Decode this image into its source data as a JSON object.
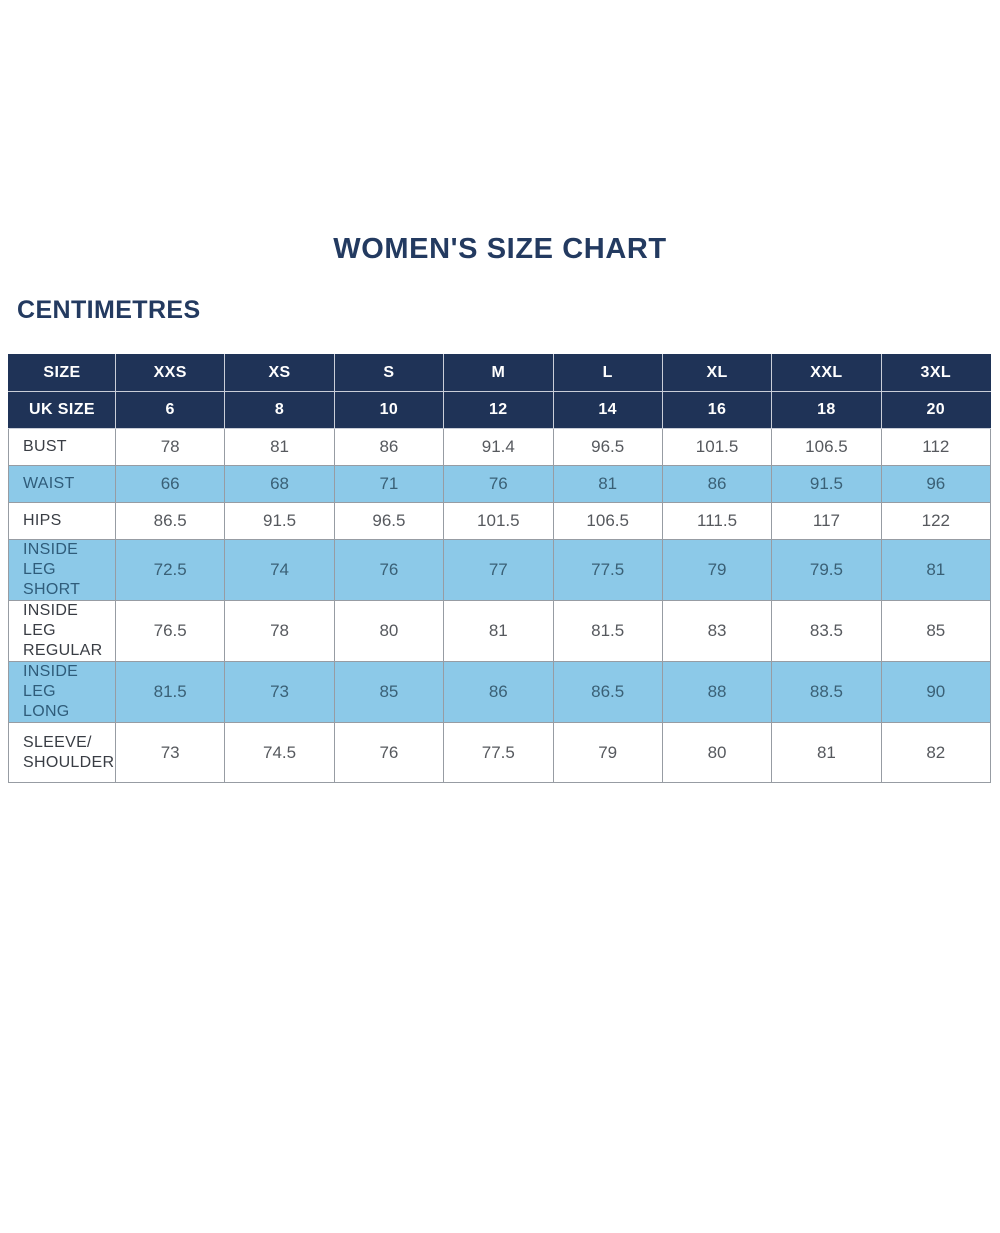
{
  "page_title": "WOMEN'S SIZE CHART",
  "unit_label": "CENTIMETRES",
  "colors": {
    "navy_header_bg": "#1f3357",
    "highlight_row_bg": "#8cc9e8",
    "title_text": "#233a60",
    "header_text": "#ffffff",
    "white_row_label_text": "#393d44",
    "white_row_value_text": "#56595e",
    "blue_row_text": "#2f5c7a",
    "grid_border": "#979ca3"
  },
  "chart_data": {
    "type": "table",
    "title": "WOMEN'S SIZE CHART",
    "subtitle": "CENTIMETRES",
    "columns": [
      "SIZE",
      "XXS",
      "XS",
      "S",
      "M",
      "L",
      "XL",
      "XXL",
      "3XL"
    ],
    "uk_size_row": {
      "label": "UK SIZE",
      "values": [
        "6",
        "8",
        "10",
        "12",
        "14",
        "16",
        "18",
        "20"
      ]
    },
    "rows": [
      {
        "label": "BUST",
        "values": [
          "78",
          "81",
          "86",
          "91.4",
          "96.5",
          "101.5",
          "106.5",
          "112"
        ]
      },
      {
        "label": "WAIST",
        "values": [
          "66",
          "68",
          "71",
          "76",
          "81",
          "86",
          "91.5",
          "96"
        ]
      },
      {
        "label": "HIPS",
        "values": [
          "86.5",
          "91.5",
          "96.5",
          "101.5",
          "106.5",
          "111.5",
          "117",
          "122"
        ]
      },
      {
        "label": "INSIDE LEG\nSHORT",
        "values": [
          "72.5",
          "74",
          "76",
          "77",
          "77.5",
          "79",
          "79.5",
          "81"
        ]
      },
      {
        "label": "INSIDE LEG\nREGULAR",
        "values": [
          "76.5",
          "78",
          "80",
          "81",
          "81.5",
          "83",
          "83.5",
          "85"
        ]
      },
      {
        "label": "INSIDE LEG\nLONG",
        "values": [
          "81.5",
          "73",
          "85",
          "86",
          "86.5",
          "88",
          "88.5",
          "90"
        ]
      },
      {
        "label": "SLEEVE/\nSHOULDER",
        "values": [
          "73",
          "74.5",
          "76",
          "77.5",
          "79",
          "80",
          "81",
          "82"
        ]
      }
    ]
  }
}
